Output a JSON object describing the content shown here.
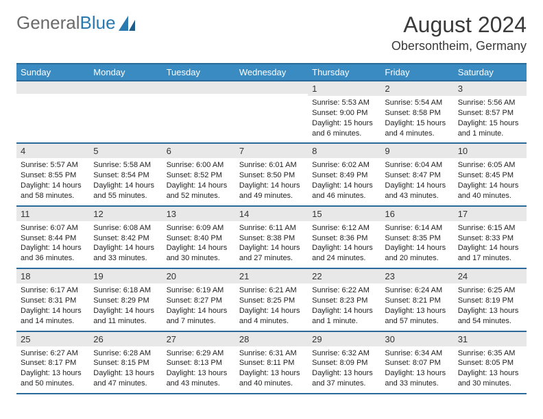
{
  "logo": {
    "part1": "General",
    "part2": "Blue"
  },
  "title": "August 2024",
  "location": "Obersontheim, Germany",
  "colors": {
    "header_bg": "#3b8bc3",
    "header_border": "#2a6a9a",
    "daynum_bg": "#e8e8e8",
    "text": "#222222",
    "logo_gray": "#6a6a6a",
    "logo_blue": "#2a7ab0"
  },
  "dayHeaders": [
    "Sunday",
    "Monday",
    "Tuesday",
    "Wednesday",
    "Thursday",
    "Friday",
    "Saturday"
  ],
  "weeks": [
    [
      {
        "day": "",
        "sunrise": "",
        "sunset": "",
        "daylight": ""
      },
      {
        "day": "",
        "sunrise": "",
        "sunset": "",
        "daylight": ""
      },
      {
        "day": "",
        "sunrise": "",
        "sunset": "",
        "daylight": ""
      },
      {
        "day": "",
        "sunrise": "",
        "sunset": "",
        "daylight": ""
      },
      {
        "day": "1",
        "sunrise": "Sunrise: 5:53 AM",
        "sunset": "Sunset: 9:00 PM",
        "daylight": "Daylight: 15 hours and 6 minutes."
      },
      {
        "day": "2",
        "sunrise": "Sunrise: 5:54 AM",
        "sunset": "Sunset: 8:58 PM",
        "daylight": "Daylight: 15 hours and 4 minutes."
      },
      {
        "day": "3",
        "sunrise": "Sunrise: 5:56 AM",
        "sunset": "Sunset: 8:57 PM",
        "daylight": "Daylight: 15 hours and 1 minute."
      }
    ],
    [
      {
        "day": "4",
        "sunrise": "Sunrise: 5:57 AM",
        "sunset": "Sunset: 8:55 PM",
        "daylight": "Daylight: 14 hours and 58 minutes."
      },
      {
        "day": "5",
        "sunrise": "Sunrise: 5:58 AM",
        "sunset": "Sunset: 8:54 PM",
        "daylight": "Daylight: 14 hours and 55 minutes."
      },
      {
        "day": "6",
        "sunrise": "Sunrise: 6:00 AM",
        "sunset": "Sunset: 8:52 PM",
        "daylight": "Daylight: 14 hours and 52 minutes."
      },
      {
        "day": "7",
        "sunrise": "Sunrise: 6:01 AM",
        "sunset": "Sunset: 8:50 PM",
        "daylight": "Daylight: 14 hours and 49 minutes."
      },
      {
        "day": "8",
        "sunrise": "Sunrise: 6:02 AM",
        "sunset": "Sunset: 8:49 PM",
        "daylight": "Daylight: 14 hours and 46 minutes."
      },
      {
        "day": "9",
        "sunrise": "Sunrise: 6:04 AM",
        "sunset": "Sunset: 8:47 PM",
        "daylight": "Daylight: 14 hours and 43 minutes."
      },
      {
        "day": "10",
        "sunrise": "Sunrise: 6:05 AM",
        "sunset": "Sunset: 8:45 PM",
        "daylight": "Daylight: 14 hours and 40 minutes."
      }
    ],
    [
      {
        "day": "11",
        "sunrise": "Sunrise: 6:07 AM",
        "sunset": "Sunset: 8:44 PM",
        "daylight": "Daylight: 14 hours and 36 minutes."
      },
      {
        "day": "12",
        "sunrise": "Sunrise: 6:08 AM",
        "sunset": "Sunset: 8:42 PM",
        "daylight": "Daylight: 14 hours and 33 minutes."
      },
      {
        "day": "13",
        "sunrise": "Sunrise: 6:09 AM",
        "sunset": "Sunset: 8:40 PM",
        "daylight": "Daylight: 14 hours and 30 minutes."
      },
      {
        "day": "14",
        "sunrise": "Sunrise: 6:11 AM",
        "sunset": "Sunset: 8:38 PM",
        "daylight": "Daylight: 14 hours and 27 minutes."
      },
      {
        "day": "15",
        "sunrise": "Sunrise: 6:12 AM",
        "sunset": "Sunset: 8:36 PM",
        "daylight": "Daylight: 14 hours and 24 minutes."
      },
      {
        "day": "16",
        "sunrise": "Sunrise: 6:14 AM",
        "sunset": "Sunset: 8:35 PM",
        "daylight": "Daylight: 14 hours and 20 minutes."
      },
      {
        "day": "17",
        "sunrise": "Sunrise: 6:15 AM",
        "sunset": "Sunset: 8:33 PM",
        "daylight": "Daylight: 14 hours and 17 minutes."
      }
    ],
    [
      {
        "day": "18",
        "sunrise": "Sunrise: 6:17 AM",
        "sunset": "Sunset: 8:31 PM",
        "daylight": "Daylight: 14 hours and 14 minutes."
      },
      {
        "day": "19",
        "sunrise": "Sunrise: 6:18 AM",
        "sunset": "Sunset: 8:29 PM",
        "daylight": "Daylight: 14 hours and 11 minutes."
      },
      {
        "day": "20",
        "sunrise": "Sunrise: 6:19 AM",
        "sunset": "Sunset: 8:27 PM",
        "daylight": "Daylight: 14 hours and 7 minutes."
      },
      {
        "day": "21",
        "sunrise": "Sunrise: 6:21 AM",
        "sunset": "Sunset: 8:25 PM",
        "daylight": "Daylight: 14 hours and 4 minutes."
      },
      {
        "day": "22",
        "sunrise": "Sunrise: 6:22 AM",
        "sunset": "Sunset: 8:23 PM",
        "daylight": "Daylight: 14 hours and 1 minute."
      },
      {
        "day": "23",
        "sunrise": "Sunrise: 6:24 AM",
        "sunset": "Sunset: 8:21 PM",
        "daylight": "Daylight: 13 hours and 57 minutes."
      },
      {
        "day": "24",
        "sunrise": "Sunrise: 6:25 AM",
        "sunset": "Sunset: 8:19 PM",
        "daylight": "Daylight: 13 hours and 54 minutes."
      }
    ],
    [
      {
        "day": "25",
        "sunrise": "Sunrise: 6:27 AM",
        "sunset": "Sunset: 8:17 PM",
        "daylight": "Daylight: 13 hours and 50 minutes."
      },
      {
        "day": "26",
        "sunrise": "Sunrise: 6:28 AM",
        "sunset": "Sunset: 8:15 PM",
        "daylight": "Daylight: 13 hours and 47 minutes."
      },
      {
        "day": "27",
        "sunrise": "Sunrise: 6:29 AM",
        "sunset": "Sunset: 8:13 PM",
        "daylight": "Daylight: 13 hours and 43 minutes."
      },
      {
        "day": "28",
        "sunrise": "Sunrise: 6:31 AM",
        "sunset": "Sunset: 8:11 PM",
        "daylight": "Daylight: 13 hours and 40 minutes."
      },
      {
        "day": "29",
        "sunrise": "Sunrise: 6:32 AM",
        "sunset": "Sunset: 8:09 PM",
        "daylight": "Daylight: 13 hours and 37 minutes."
      },
      {
        "day": "30",
        "sunrise": "Sunrise: 6:34 AM",
        "sunset": "Sunset: 8:07 PM",
        "daylight": "Daylight: 13 hours and 33 minutes."
      },
      {
        "day": "31",
        "sunrise": "Sunrise: 6:35 AM",
        "sunset": "Sunset: 8:05 PM",
        "daylight": "Daylight: 13 hours and 30 minutes."
      }
    ]
  ]
}
